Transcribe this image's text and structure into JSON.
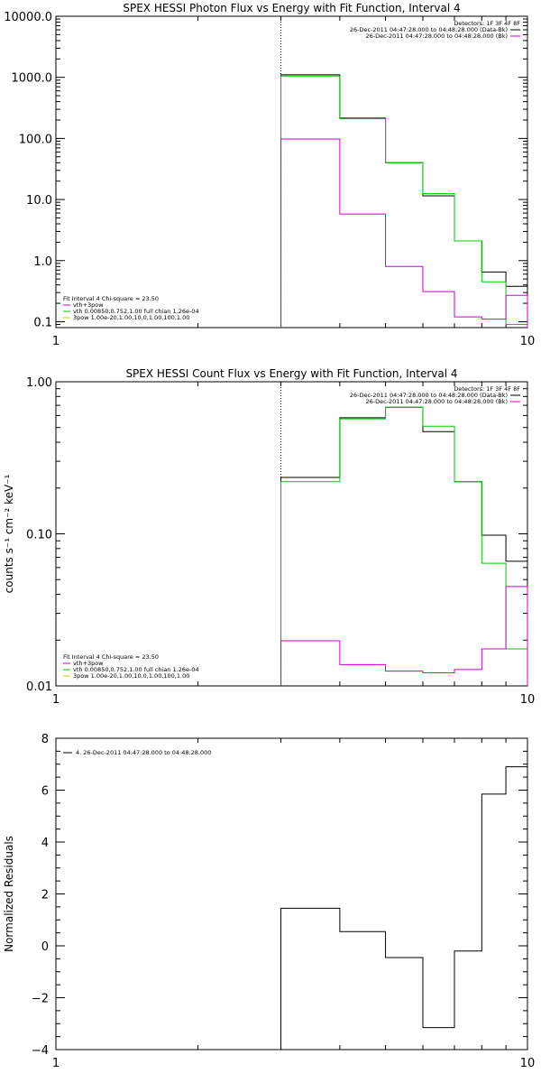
{
  "colors": {
    "axis": "#000000",
    "data": "#000000",
    "model": "#00cc00",
    "bk": "#cc00cc"
  },
  "chart_data": [
    {
      "type": "line",
      "title": "SPEX HESSI Photon Flux vs Energy with Fit Function, Interval 4",
      "xlabel": "",
      "ylabel": "",
      "x_scale": "log",
      "y_scale": "log",
      "xlim": [
        1,
        10
      ],
      "ylim": [
        0.08,
        10000
      ],
      "x_ticks": [
        "1",
        "10"
      ],
      "y_ticks": [
        "0.1",
        "1.0",
        "10.0",
        "100.0",
        "1000.0",
        "10000.0"
      ],
      "marker_x": 3.0,
      "bin_edges": [
        3.0,
        4.0,
        5.0,
        6.0,
        7.0,
        8.0,
        9.0,
        10.0
      ],
      "legend_right": {
        "title": "Detectors: 1F 3F 4F 8F",
        "entries": [
          "26-Dec-2011 04:47:28.000 to 04:48:28.000 (Data-Bk)",
          "26-Dec-2011 04:47:28.000 to 04:48:28.000 (Bk)"
        ]
      },
      "legend_left": {
        "title": "Fit Interval 4   Chi-square = 23.50",
        "entries": [
          "vth+3pow",
          "vth 0.00850,0.752,1.00  full chian 1.26e-04",
          "3pow 1.00e-20,1.00,10.0,1.00,100,1.00"
        ]
      },
      "series": [
        {
          "values": [
            1100,
            215,
            40,
            11.5,
            2.1,
            0.65,
            0.38
          ],
          "color_key": "data"
        },
        {
          "values": [
            1050,
            210,
            40,
            12.5,
            2.1,
            0.45,
            0.09
          ],
          "color_key": "model"
        },
        {
          "values": [
            98,
            5.8,
            0.8,
            0.31,
            0.12,
            0.11,
            0.27
          ],
          "color_key": "bk"
        }
      ]
    },
    {
      "type": "line",
      "title": "SPEX HESSI Count Flux vs Energy with Fit Function, Interval 4",
      "xlabel": "",
      "ylabel": "counts s⁻¹ cm⁻² keV⁻¹",
      "x_scale": "log",
      "y_scale": "log",
      "xlim": [
        1,
        10
      ],
      "ylim": [
        0.01,
        1.0
      ],
      "x_ticks": [
        "1",
        "10"
      ],
      "y_ticks": [
        "0.01",
        "0.10",
        "1.00"
      ],
      "marker_x": 3.0,
      "bin_edges": [
        3.0,
        4.0,
        5.0,
        6.0,
        7.0,
        8.0,
        9.0,
        10.0
      ],
      "legend_right": {
        "title": "Detectors: 1F 3F 4F 8F",
        "entries": [
          "26-Dec-2011 04:47:28.000 to 04:48:28.000 (Data-Bk)",
          "26-Dec-2011 04:47:28.000 to 04:48:28.000 (Bk)"
        ]
      },
      "legend_left": {
        "title": "Fit Interval 4   Chi-square = 23.50",
        "entries": [
          "vth+3pow",
          "vth 0.00850,0.752,1.00  full chian 1.26e-04",
          "3pow 1.00e-20,1.00,10.0,1.00,100,1.00"
        ]
      },
      "series": [
        {
          "values": [
            0.235,
            0.58,
            0.68,
            0.47,
            0.22,
            0.098,
            0.066
          ],
          "color_key": "data"
        },
        {
          "values": [
            0.22,
            0.57,
            0.68,
            0.51,
            0.22,
            0.064,
            0.0175
          ],
          "color_key": "model"
        },
        {
          "values": [
            0.0198,
            0.0138,
            0.0125,
            0.0122,
            0.0128,
            0.0175,
            0.045
          ],
          "color_key": "bk"
        }
      ]
    },
    {
      "type": "line",
      "title": "",
      "xlabel": "",
      "ylabel": "Normalized Residuals",
      "x_scale": "log",
      "y_scale": "linear",
      "xlim": [
        1,
        10
      ],
      "ylim": [
        -4,
        8
      ],
      "x_ticks": [
        "1",
        "10"
      ],
      "y_ticks": [
        "−4",
        "−2",
        "0",
        "2",
        "4",
        "6",
        "8"
      ],
      "bin_edges": [
        3.0,
        4.0,
        5.0,
        6.0,
        7.0,
        8.0,
        9.0,
        10.0
      ],
      "legend_left": {
        "title": "",
        "entries": [
          "4. 26-Dec-2011 04:47:28.000 to 04:48:28.000"
        ]
      },
      "series": [
        {
          "values": [
            1.45,
            0.55,
            -0.45,
            -3.15,
            -0.2,
            5.85,
            6.9
          ],
          "color_key": "data"
        }
      ]
    }
  ]
}
